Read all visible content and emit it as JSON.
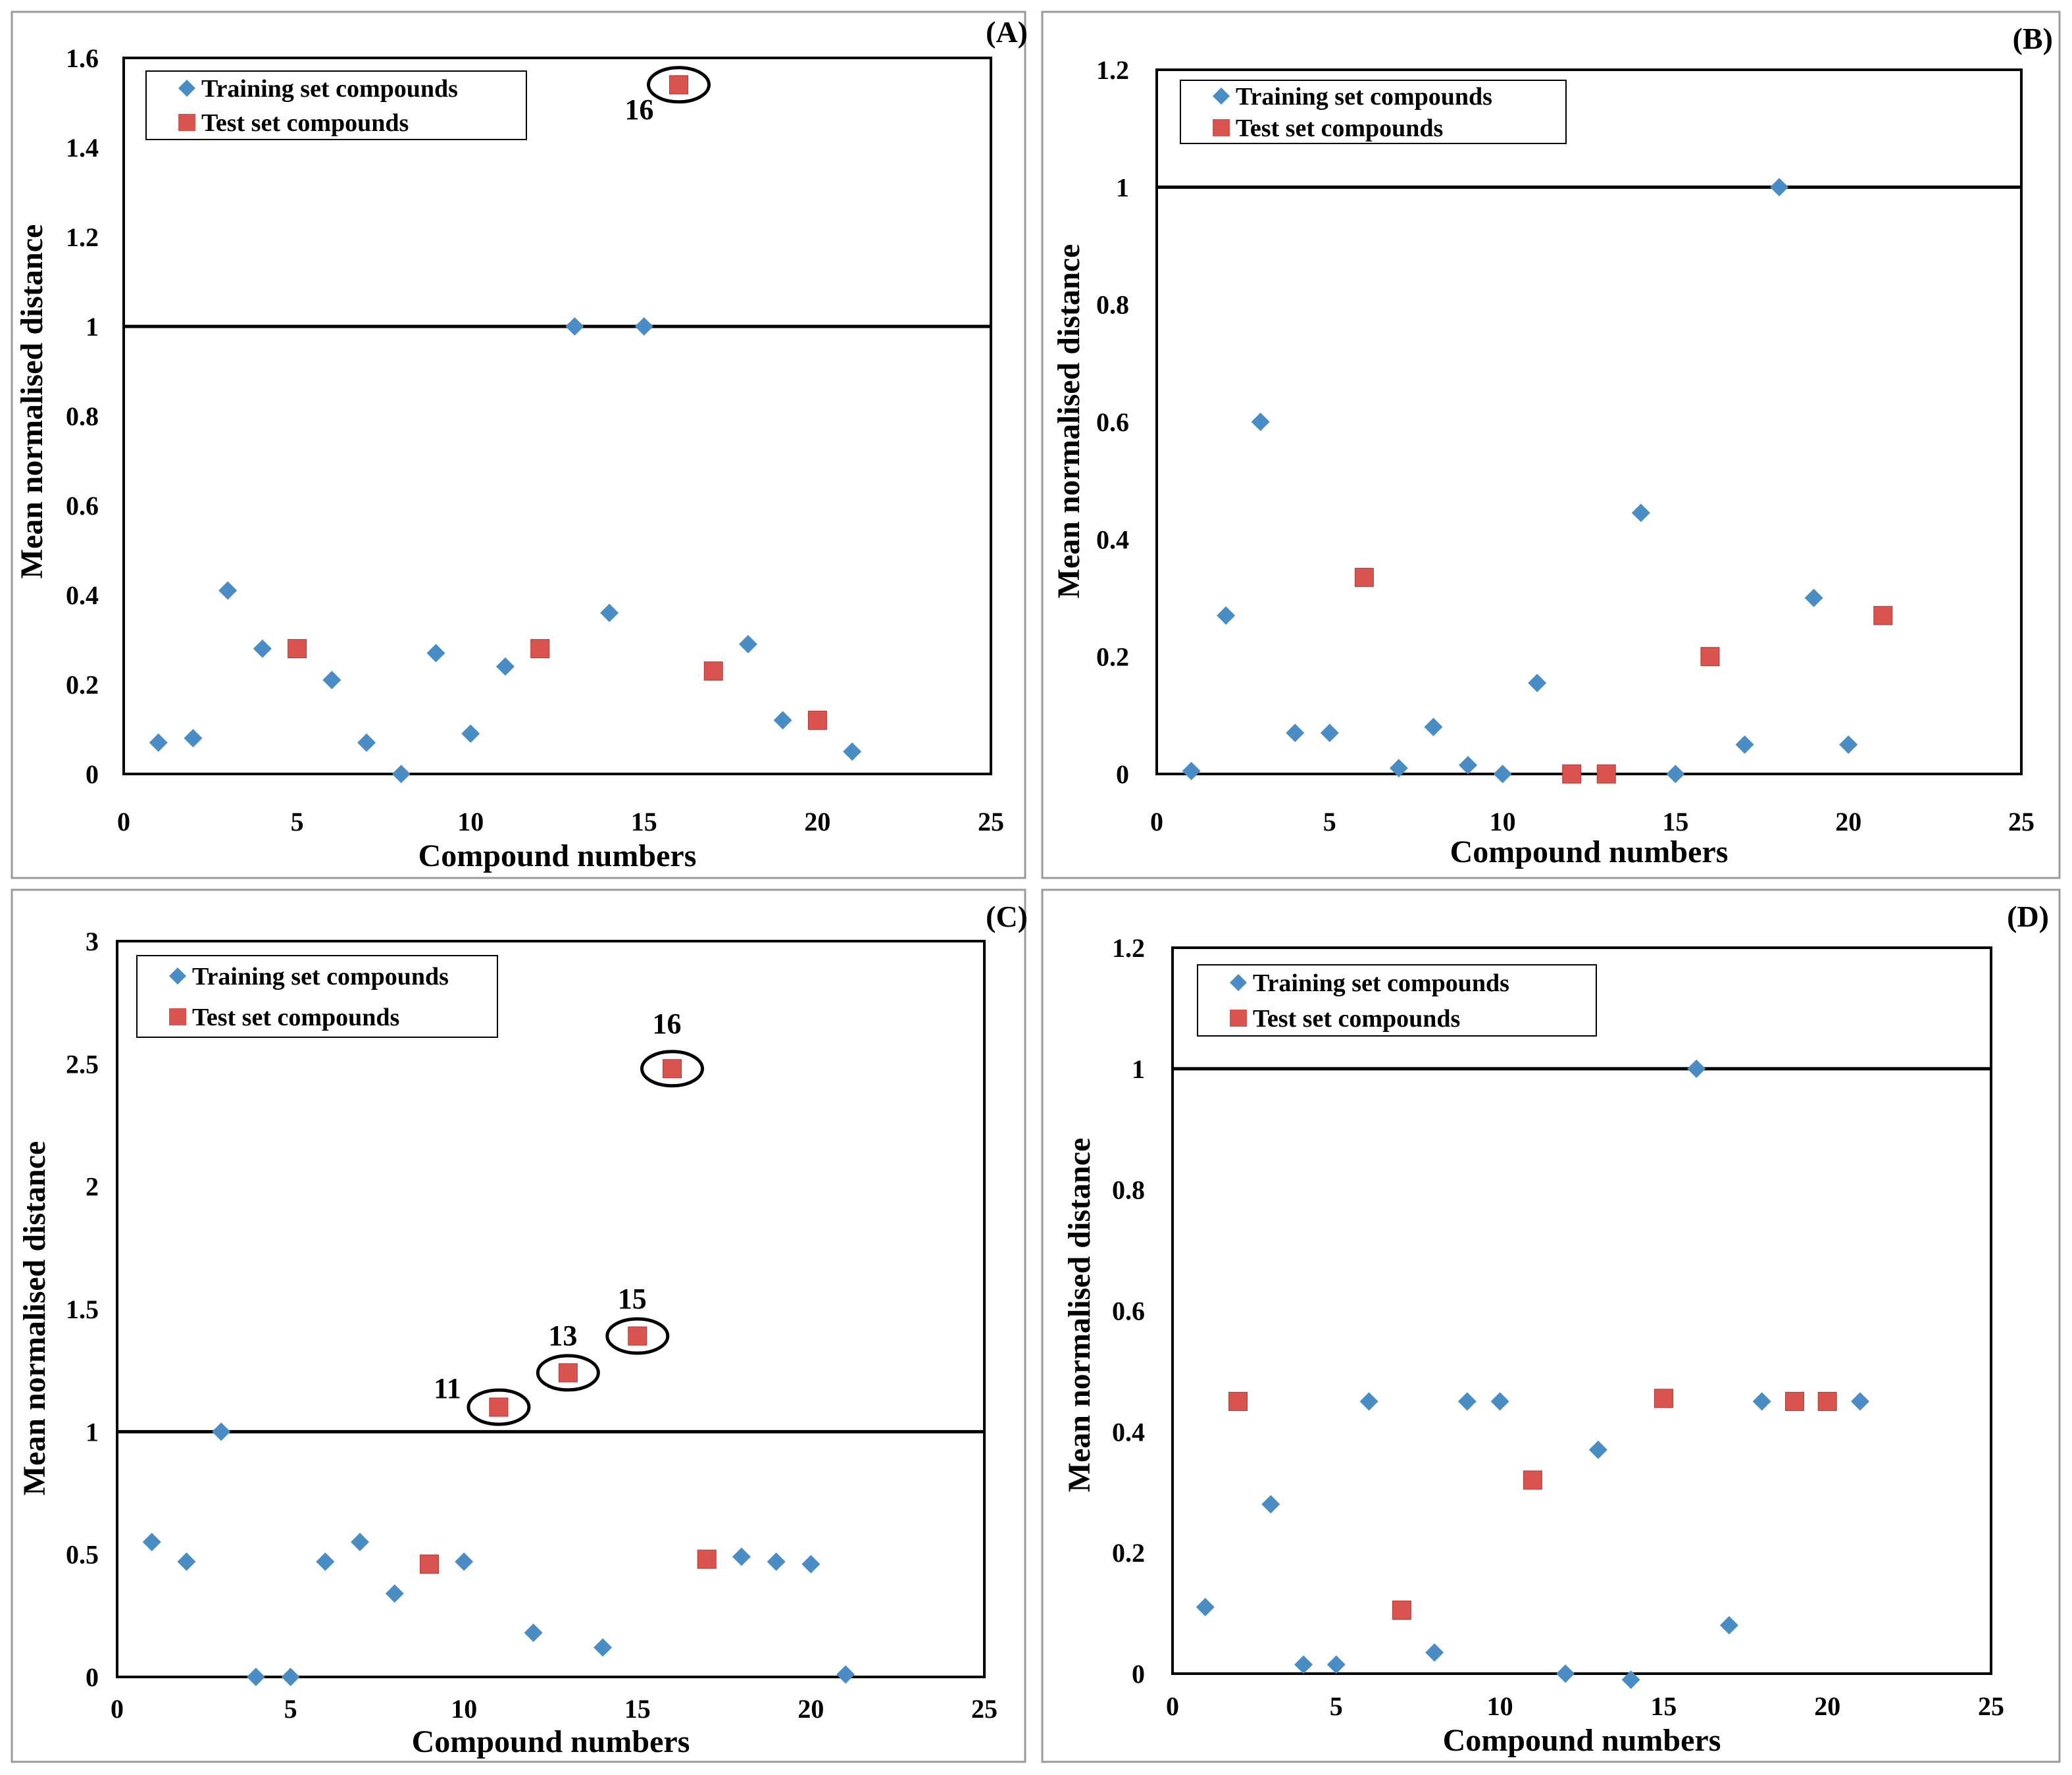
{
  "chart_data": [
    {
      "type": "scatter",
      "panel_label": "(A)",
      "xlabel": "Compound numbers",
      "ylabel": "Mean normalised distance",
      "xlim": [
        0,
        25
      ],
      "ylim": [
        0,
        1.6
      ],
      "xticks": [
        "0",
        "5",
        "10",
        "15",
        "20",
        "25"
      ],
      "yticks": [
        "0",
        "0.2",
        "0.4",
        "0.6",
        "0.8",
        "1",
        "1.2",
        "1.4",
        "1.6"
      ],
      "threshold": 1,
      "legend": [
        "Training set compounds",
        "Test set compounds"
      ],
      "series": [
        {
          "name": "Training set compounds",
          "color": "#4a8cc4",
          "marker": "diamond",
          "points": [
            [
              1,
              0.07
            ],
            [
              2,
              0.08
            ],
            [
              3,
              0.41
            ],
            [
              4,
              0.28
            ],
            [
              6,
              0.21
            ],
            [
              7,
              0.07
            ],
            [
              8,
              0.0
            ],
            [
              9,
              0.27
            ],
            [
              10,
              0.09
            ],
            [
              11,
              0.24
            ],
            [
              13,
              1.0
            ],
            [
              14,
              0.36
            ],
            [
              15,
              1.0
            ],
            [
              18,
              0.29
            ],
            [
              19,
              0.12
            ],
            [
              21,
              0.05
            ]
          ]
        },
        {
          "name": "Test set compounds",
          "color": "#d9534f",
          "marker": "square",
          "points": [
            [
              5,
              0.28
            ],
            [
              12,
              0.28
            ],
            [
              16,
              1.54
            ],
            [
              17,
              0.23
            ],
            [
              20,
              0.12
            ]
          ]
        }
      ],
      "annotations": [
        {
          "text": "16",
          "x": 16,
          "y": 1.54
        }
      ]
    },
    {
      "type": "scatter",
      "panel_label": "(B)",
      "xlabel": "Compound numbers",
      "ylabel": "Mean normalised distance",
      "xlim": [
        0,
        25
      ],
      "ylim": [
        0,
        1.2
      ],
      "xticks": [
        "0",
        "5",
        "10",
        "15",
        "20",
        "25"
      ],
      "yticks": [
        "0",
        "0.2",
        "0.4",
        "0.6",
        "0.8",
        "1",
        "1.2"
      ],
      "threshold": 1,
      "legend": [
        "Training set compounds",
        "Test set compounds"
      ],
      "series": [
        {
          "name": "Training set compounds",
          "color": "#4a8cc4",
          "marker": "diamond",
          "points": [
            [
              1,
              0.005
            ],
            [
              2,
              0.27
            ],
            [
              3,
              0.6
            ],
            [
              4,
              0.07
            ],
            [
              5,
              0.07
            ],
            [
              7,
              0.01
            ],
            [
              8,
              0.08
            ],
            [
              9,
              0.015
            ],
            [
              10,
              0.0
            ],
            [
              11,
              0.155
            ],
            [
              14,
              0.445
            ],
            [
              15,
              0.0
            ],
            [
              17,
              0.05
            ],
            [
              18,
              1.0
            ],
            [
              19,
              0.3
            ],
            [
              20,
              0.05
            ]
          ]
        },
        {
          "name": "Test set compounds",
          "color": "#d9534f",
          "marker": "square",
          "points": [
            [
              6,
              0.335
            ],
            [
              12,
              0.0
            ],
            [
              13,
              0.0
            ],
            [
              16,
              0.2
            ],
            [
              21,
              0.27
            ]
          ]
        }
      ],
      "annotations": []
    },
    {
      "type": "scatter",
      "panel_label": "(C)",
      "xlabel": "Compound numbers",
      "ylabel": "Mean normalised distance",
      "xlim": [
        0,
        25
      ],
      "ylim": [
        0,
        3
      ],
      "xticks": [
        "0",
        "5",
        "10",
        "15",
        "20",
        "25"
      ],
      "yticks": [
        "0",
        "0.5",
        "1",
        "1.5",
        "2",
        "2.5",
        "3"
      ],
      "threshold": 1,
      "legend": [
        "Training set compounds",
        "Test set compounds"
      ],
      "series": [
        {
          "name": "Training set compounds",
          "color": "#4a8cc4",
          "marker": "diamond",
          "points": [
            [
              1,
              0.55
            ],
            [
              2,
              0.47
            ],
            [
              3,
              1.0
            ],
            [
              4,
              0.0
            ],
            [
              5,
              0.0
            ],
            [
              6,
              0.47
            ],
            [
              7,
              0.55
            ],
            [
              8,
              0.34
            ],
            [
              10,
              0.47
            ],
            [
              12,
              0.18
            ],
            [
              14,
              0.12
            ],
            [
              18,
              0.49
            ],
            [
              19,
              0.47
            ],
            [
              20,
              0.46
            ],
            [
              21,
              0.01
            ]
          ]
        },
        {
          "name": "Test set compounds",
          "color": "#d9534f",
          "marker": "square",
          "points": [
            [
              9,
              0.46
            ],
            [
              11,
              1.1
            ],
            [
              13,
              1.24
            ],
            [
              15,
              1.39
            ],
            [
              16,
              2.48
            ],
            [
              17,
              0.48
            ]
          ]
        }
      ],
      "annotations": [
        {
          "text": "11",
          "x": 11,
          "y": 1.1
        },
        {
          "text": "13",
          "x": 13,
          "y": 1.24
        },
        {
          "text": "15",
          "x": 15,
          "y": 1.39
        },
        {
          "text": "16",
          "x": 16,
          "y": 2.48
        }
      ]
    },
    {
      "type": "scatter",
      "panel_label": "(D)",
      "xlabel": "Compound numbers",
      "ylabel": "Mean normalised distance",
      "xlim": [
        0,
        25
      ],
      "ylim": [
        0,
        1.2
      ],
      "xticks": [
        "0",
        "5",
        "10",
        "15",
        "20",
        "25"
      ],
      "yticks": [
        "0",
        "0.2",
        "0.4",
        "0.6",
        "0.8",
        "1",
        "1.2"
      ],
      "threshold": 1,
      "legend": [
        "Training set compounds",
        "Test set compounds"
      ],
      "series": [
        {
          "name": "Training set compounds",
          "color": "#4a8cc4",
          "marker": "diamond",
          "points": [
            [
              1,
              0.11
            ],
            [
              3,
              0.28
            ],
            [
              4,
              0.015
            ],
            [
              5,
              0.015
            ],
            [
              6,
              0.45
            ],
            [
              8,
              0.035
            ],
            [
              9,
              0.45
            ],
            [
              10,
              0.45
            ],
            [
              12,
              0.0
            ],
            [
              13,
              0.37
            ],
            [
              14,
              -0.01
            ],
            [
              16,
              1.0
            ],
            [
              17,
              0.08
            ],
            [
              18,
              0.45
            ],
            [
              21,
              0.45
            ]
          ]
        },
        {
          "name": "Test set compounds",
          "color": "#d9534f",
          "marker": "square",
          "points": [
            [
              2,
              0.45
            ],
            [
              7,
              0.105
            ],
            [
              11,
              0.32
            ],
            [
              15,
              0.455
            ],
            [
              19,
              0.45
            ],
            [
              20,
              0.45
            ]
          ]
        }
      ],
      "annotations": []
    }
  ]
}
